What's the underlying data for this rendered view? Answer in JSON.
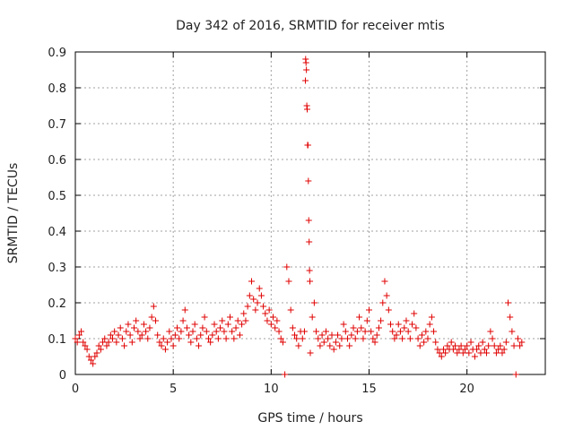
{
  "chart_data": {
    "type": "scatter",
    "title": "Day 342 of 2016, SRMTID for receiver mtis",
    "xlabel": "GPS time / hours",
    "ylabel": "SRMTID / TECUs",
    "xlim": [
      0,
      24
    ],
    "ylim": [
      0,
      0.9
    ],
    "xticks": [
      0,
      5,
      10,
      15,
      20
    ],
    "yticks": [
      0,
      0.1,
      0.2,
      0.3,
      0.4,
      0.5,
      0.6,
      0.7,
      0.8,
      0.9
    ],
    "grid": true,
    "marker": "+",
    "color": "#e00000",
    "series": [
      {
        "name": "SRMTID",
        "points": [
          [
            0.0,
            0.1
          ],
          [
            0.1,
            0.09
          ],
          [
            0.2,
            0.11
          ],
          [
            0.3,
            0.12
          ],
          [
            0.4,
            0.09
          ],
          [
            0.5,
            0.08
          ],
          [
            0.6,
            0.07
          ],
          [
            0.7,
            0.05
          ],
          [
            0.8,
            0.04
          ],
          [
            0.9,
            0.03
          ],
          [
            1.0,
            0.05
          ],
          [
            1.1,
            0.06
          ],
          [
            1.2,
            0.08
          ],
          [
            1.3,
            0.07
          ],
          [
            1.4,
            0.09
          ],
          [
            1.5,
            0.1
          ],
          [
            1.6,
            0.08
          ],
          [
            1.7,
            0.09
          ],
          [
            1.8,
            0.11
          ],
          [
            1.9,
            0.1
          ],
          [
            2.0,
            0.12
          ],
          [
            2.1,
            0.09
          ],
          [
            2.2,
            0.11
          ],
          [
            2.3,
            0.13
          ],
          [
            2.4,
            0.1
          ],
          [
            2.5,
            0.08
          ],
          [
            2.6,
            0.12
          ],
          [
            2.7,
            0.14
          ],
          [
            2.8,
            0.11
          ],
          [
            2.9,
            0.09
          ],
          [
            3.0,
            0.13
          ],
          [
            3.1,
            0.15
          ],
          [
            3.2,
            0.12
          ],
          [
            3.3,
            0.1
          ],
          [
            3.4,
            0.11
          ],
          [
            3.5,
            0.14
          ],
          [
            3.6,
            0.12
          ],
          [
            3.7,
            0.1
          ],
          [
            3.8,
            0.13
          ],
          [
            3.9,
            0.16
          ],
          [
            4.0,
            0.19
          ],
          [
            4.1,
            0.15
          ],
          [
            4.2,
            0.11
          ],
          [
            4.3,
            0.09
          ],
          [
            4.4,
            0.08
          ],
          [
            4.5,
            0.1
          ],
          [
            4.6,
            0.07
          ],
          [
            4.7,
            0.09
          ],
          [
            4.8,
            0.12
          ],
          [
            4.9,
            0.1
          ],
          [
            5.0,
            0.08
          ],
          [
            5.1,
            0.11
          ],
          [
            5.2,
            0.13
          ],
          [
            5.3,
            0.1
          ],
          [
            5.4,
            0.12
          ],
          [
            5.5,
            0.15
          ],
          [
            5.6,
            0.18
          ],
          [
            5.7,
            0.13
          ],
          [
            5.8,
            0.11
          ],
          [
            5.9,
            0.09
          ],
          [
            6.0,
            0.12
          ],
          [
            6.1,
            0.14
          ],
          [
            6.2,
            0.1
          ],
          [
            6.3,
            0.08
          ],
          [
            6.4,
            0.11
          ],
          [
            6.5,
            0.13
          ],
          [
            6.6,
            0.16
          ],
          [
            6.7,
            0.12
          ],
          [
            6.8,
            0.1
          ],
          [
            6.9,
            0.09
          ],
          [
            7.0,
            0.11
          ],
          [
            7.1,
            0.14
          ],
          [
            7.2,
            0.12
          ],
          [
            7.3,
            0.1
          ],
          [
            7.4,
            0.13
          ],
          [
            7.5,
            0.15
          ],
          [
            7.6,
            0.12
          ],
          [
            7.7,
            0.1
          ],
          [
            7.8,
            0.14
          ],
          [
            7.9,
            0.16
          ],
          [
            8.0,
            0.12
          ],
          [
            8.1,
            0.1
          ],
          [
            8.2,
            0.13
          ],
          [
            8.3,
            0.15
          ],
          [
            8.4,
            0.11
          ],
          [
            8.5,
            0.14
          ],
          [
            8.6,
            0.17
          ],
          [
            8.7,
            0.15
          ],
          [
            8.8,
            0.19
          ],
          [
            8.9,
            0.22
          ],
          [
            9.0,
            0.26
          ],
          [
            9.1,
            0.21
          ],
          [
            9.2,
            0.18
          ],
          [
            9.3,
            0.2
          ],
          [
            9.4,
            0.24
          ],
          [
            9.5,
            0.22
          ],
          [
            9.6,
            0.19
          ],
          [
            9.7,
            0.17
          ],
          [
            9.8,
            0.15
          ],
          [
            9.9,
            0.18
          ],
          [
            10.0,
            0.14
          ],
          [
            10.1,
            0.16
          ],
          [
            10.2,
            0.13
          ],
          [
            10.3,
            0.15
          ],
          [
            10.4,
            0.12
          ],
          [
            10.5,
            0.1
          ],
          [
            10.6,
            0.09
          ],
          [
            10.7,
            0.0
          ],
          [
            10.8,
            0.3
          ],
          [
            10.9,
            0.26
          ],
          [
            11.0,
            0.18
          ],
          [
            11.1,
            0.13
          ],
          [
            11.2,
            0.11
          ],
          [
            11.3,
            0.1
          ],
          [
            11.4,
            0.08
          ],
          [
            11.5,
            0.12
          ],
          [
            11.6,
            0.1
          ],
          [
            11.7,
            0.12
          ],
          [
            11.75,
            0.82
          ],
          [
            11.76,
            0.88
          ],
          [
            11.78,
            0.87
          ],
          [
            11.8,
            0.85
          ],
          [
            11.82,
            0.75
          ],
          [
            11.84,
            0.74
          ],
          [
            11.86,
            0.64
          ],
          [
            11.88,
            0.64
          ],
          [
            11.9,
            0.54
          ],
          [
            11.92,
            0.43
          ],
          [
            11.94,
            0.37
          ],
          [
            11.96,
            0.29
          ],
          [
            11.98,
            0.26
          ],
          [
            12.0,
            0.06
          ],
          [
            12.1,
            0.16
          ],
          [
            12.2,
            0.2
          ],
          [
            12.3,
            0.12
          ],
          [
            12.4,
            0.1
          ],
          [
            12.5,
            0.08
          ],
          [
            12.6,
            0.11
          ],
          [
            12.7,
            0.09
          ],
          [
            12.8,
            0.12
          ],
          [
            12.9,
            0.1
          ],
          [
            13.0,
            0.08
          ],
          [
            13.1,
            0.11
          ],
          [
            13.2,
            0.07
          ],
          [
            13.3,
            0.09
          ],
          [
            13.4,
            0.11
          ],
          [
            13.5,
            0.08
          ],
          [
            13.6,
            0.1
          ],
          [
            13.7,
            0.14
          ],
          [
            13.8,
            0.12
          ],
          [
            13.9,
            0.1
          ],
          [
            14.0,
            0.08
          ],
          [
            14.1,
            0.11
          ],
          [
            14.2,
            0.13
          ],
          [
            14.3,
            0.1
          ],
          [
            14.4,
            0.12
          ],
          [
            14.5,
            0.16
          ],
          [
            14.6,
            0.13
          ],
          [
            14.7,
            0.1
          ],
          [
            14.8,
            0.12
          ],
          [
            14.9,
            0.15
          ],
          [
            15.0,
            0.18
          ],
          [
            15.1,
            0.12
          ],
          [
            15.2,
            0.1
          ],
          [
            15.3,
            0.09
          ],
          [
            15.4,
            0.11
          ],
          [
            15.5,
            0.13
          ],
          [
            15.6,
            0.15
          ],
          [
            15.7,
            0.2
          ],
          [
            15.8,
            0.26
          ],
          [
            15.9,
            0.22
          ],
          [
            16.0,
            0.18
          ],
          [
            16.1,
            0.14
          ],
          [
            16.2,
            0.12
          ],
          [
            16.3,
            0.1
          ],
          [
            16.4,
            0.11
          ],
          [
            16.5,
            0.14
          ],
          [
            16.6,
            0.12
          ],
          [
            16.7,
            0.1
          ],
          [
            16.8,
            0.13
          ],
          [
            16.9,
            0.15
          ],
          [
            17.0,
            0.12
          ],
          [
            17.1,
            0.1
          ],
          [
            17.2,
            0.14
          ],
          [
            17.3,
            0.17
          ],
          [
            17.4,
            0.13
          ],
          [
            17.5,
            0.1
          ],
          [
            17.6,
            0.08
          ],
          [
            17.7,
            0.11
          ],
          [
            17.8,
            0.09
          ],
          [
            17.9,
            0.12
          ],
          [
            18.0,
            0.1
          ],
          [
            18.1,
            0.14
          ],
          [
            18.2,
            0.16
          ],
          [
            18.3,
            0.12
          ],
          [
            18.4,
            0.09
          ],
          [
            18.5,
            0.07
          ],
          [
            18.6,
            0.06
          ],
          [
            18.7,
            0.05
          ],
          [
            18.8,
            0.07
          ],
          [
            18.9,
            0.06
          ],
          [
            19.0,
            0.08
          ],
          [
            19.1,
            0.07
          ],
          [
            19.2,
            0.09
          ],
          [
            19.3,
            0.07
          ],
          [
            19.4,
            0.08
          ],
          [
            19.5,
            0.06
          ],
          [
            19.6,
            0.07
          ],
          [
            19.7,
            0.08
          ],
          [
            19.8,
            0.06
          ],
          [
            19.9,
            0.07
          ],
          [
            20.0,
            0.08
          ],
          [
            20.1,
            0.06
          ],
          [
            20.2,
            0.09
          ],
          [
            20.3,
            0.07
          ],
          [
            20.4,
            0.05
          ],
          [
            20.5,
            0.07
          ],
          [
            20.6,
            0.08
          ],
          [
            20.7,
            0.06
          ],
          [
            20.8,
            0.09
          ],
          [
            20.9,
            0.07
          ],
          [
            21.0,
            0.06
          ],
          [
            21.1,
            0.08
          ],
          [
            21.2,
            0.12
          ],
          [
            21.3,
            0.1
          ],
          [
            21.4,
            0.08
          ],
          [
            21.5,
            0.06
          ],
          [
            21.6,
            0.07
          ],
          [
            21.7,
            0.08
          ],
          [
            21.8,
            0.06
          ],
          [
            21.9,
            0.07
          ],
          [
            22.0,
            0.09
          ],
          [
            22.1,
            0.2
          ],
          [
            22.2,
            0.16
          ],
          [
            22.3,
            0.12
          ],
          [
            22.4,
            0.08
          ],
          [
            22.5,
            0.0
          ],
          [
            22.6,
            0.1
          ],
          [
            22.7,
            0.08
          ],
          [
            22.8,
            0.09
          ]
        ]
      }
    ]
  }
}
